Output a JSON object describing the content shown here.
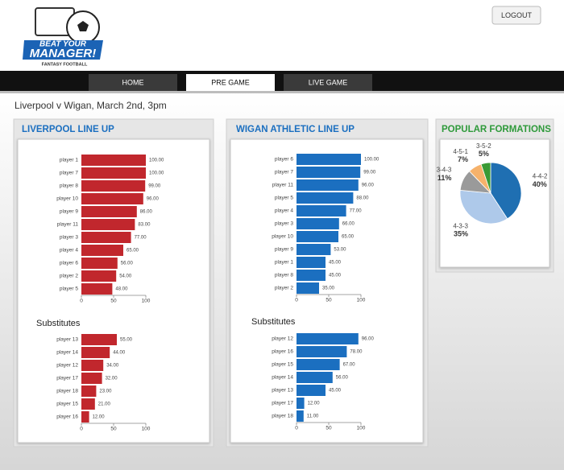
{
  "header": {
    "logo_line1": "BEAT YOUR",
    "logo_line2": "MANAGER!",
    "logo_tagline": "FANTASY FOOTBALL",
    "logout": "LOGOUT"
  },
  "nav": [
    "HOME",
    "PRE GAME",
    "LIVE GAME"
  ],
  "match": "Liverpool v Wigan, March 2nd, 3pm",
  "chart_data": [
    {
      "type": "bar",
      "orientation": "horizontal",
      "title": "LIVERPOOL LINE UP",
      "categories": [
        "player 1",
        "player 7",
        "player 8",
        "player 10",
        "player 9",
        "player 11",
        "player 3",
        "player 4",
        "player 6",
        "player 2",
        "player 5"
      ],
      "values": [
        100,
        100,
        99,
        96,
        86,
        83,
        77,
        65,
        56,
        54,
        48
      ],
      "value_labels": [
        "100.00",
        "100.00",
        "99.00",
        "96.00",
        "86.00",
        "83.00",
        "77.00",
        "65.00",
        "56.00",
        "54.00",
        "48.00"
      ],
      "color": "#c1272d",
      "xlim": [
        0,
        100
      ],
      "xticks": [
        0,
        50,
        100
      ]
    },
    {
      "type": "bar",
      "orientation": "horizontal",
      "title": "Substitutes",
      "categories": [
        "player 13",
        "player 14",
        "player 12",
        "player 17",
        "player 18",
        "player 15",
        "player 16"
      ],
      "values": [
        55,
        44,
        34,
        32,
        23,
        21,
        12
      ],
      "value_labels": [
        "55.00",
        "44.00",
        "34.00",
        "32.00",
        "23.00",
        "21.00",
        "12.00"
      ],
      "color": "#c1272d",
      "xlim": [
        0,
        100
      ],
      "xticks": [
        0,
        50,
        100
      ]
    },
    {
      "type": "bar",
      "orientation": "horizontal",
      "title": "WIGAN ATHLETIC LINE UP",
      "categories": [
        "player 6",
        "player 7",
        "player 11",
        "player 5",
        "player 4",
        "player 3",
        "player 10",
        "player 9",
        "player 1",
        "player 8",
        "player 2"
      ],
      "values": [
        100,
        99,
        96,
        88,
        77,
        66,
        65,
        53,
        45,
        45,
        35
      ],
      "value_labels": [
        "100.00",
        "99.00",
        "96.00",
        "88.00",
        "77.00",
        "66.00",
        "65.00",
        "53.00",
        "45.00",
        "45.00",
        "35.00"
      ],
      "color": "#1b6fc0",
      "xlim": [
        0,
        100
      ],
      "xticks": [
        0,
        50,
        100
      ]
    },
    {
      "type": "bar",
      "orientation": "horizontal",
      "title": "Substitutes",
      "categories": [
        "player 12",
        "player 16",
        "player 15",
        "player 14",
        "player 13",
        "player 17",
        "player 18"
      ],
      "values": [
        96,
        78,
        67,
        56,
        45,
        12,
        11
      ],
      "value_labels": [
        "96.00",
        "78.00",
        "67.00",
        "56.00",
        "45.00",
        "12.00",
        "11.00"
      ],
      "color": "#1b6fc0",
      "xlim": [
        0,
        100
      ],
      "xticks": [
        0,
        50,
        100
      ]
    },
    {
      "type": "pie",
      "title": "POPULAR FORMATIONS",
      "categories": [
        "4-4-2",
        "4-3-3",
        "3-4-3",
        "4-5-1",
        "3-5-2"
      ],
      "values": [
        40,
        35,
        11,
        7,
        5
      ],
      "value_labels": [
        "40%",
        "35%",
        "11%",
        "7%",
        "5%"
      ],
      "colors": [
        "#1f6fb2",
        "#aec9ea",
        "#9a9a9a",
        "#f6b26b",
        "#3a9a35"
      ]
    }
  ]
}
